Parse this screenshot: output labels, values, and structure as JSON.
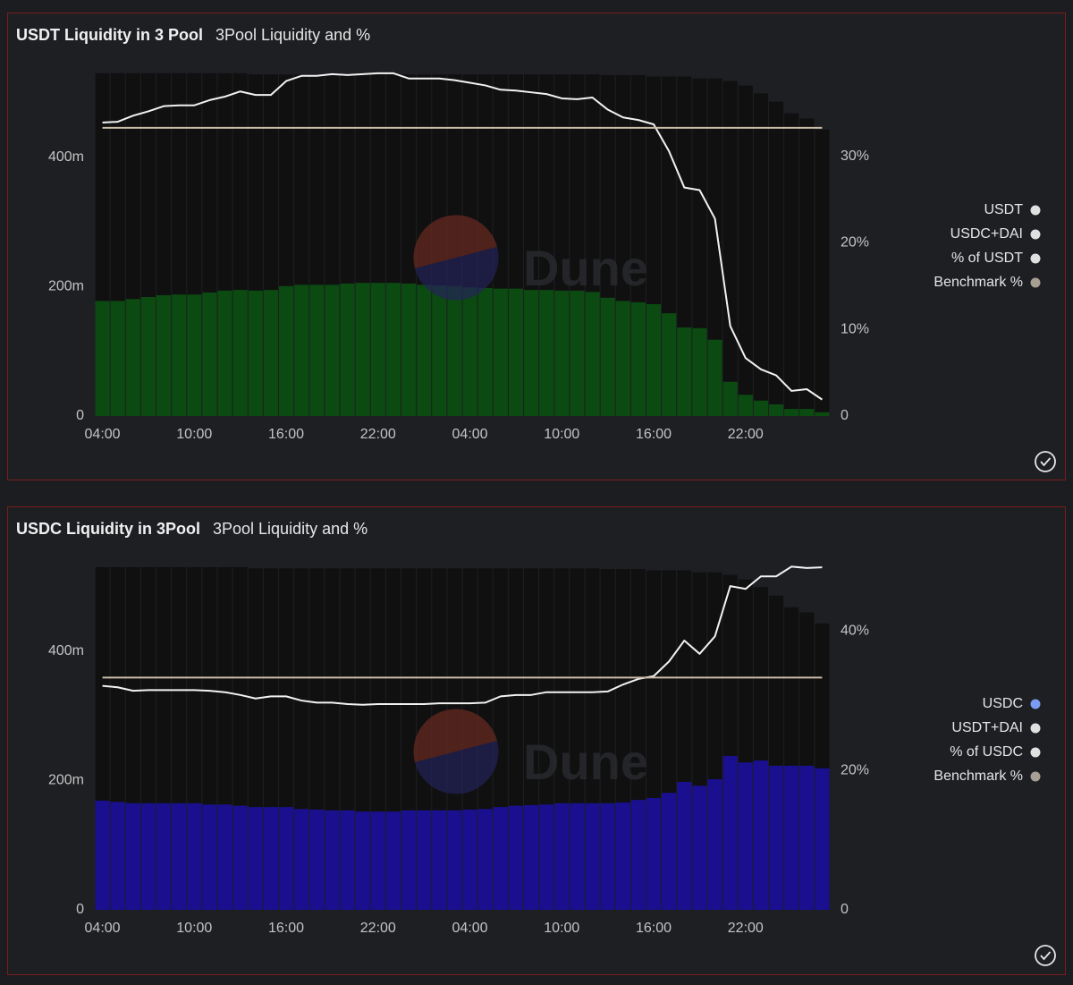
{
  "chart_data": [
    {
      "type": "combo",
      "title": "USDT Liquidity in 3 Pool",
      "subtitle": "3Pool Liquidity and %",
      "watermark": "Dune",
      "categories": [
        "04:00",
        null,
        null,
        null,
        null,
        null,
        "10:00",
        null,
        null,
        null,
        null,
        null,
        "16:00",
        null,
        null,
        null,
        null,
        null,
        "22:00",
        null,
        null,
        null,
        null,
        null,
        "04:00",
        null,
        null,
        null,
        null,
        null,
        "10:00",
        null,
        null,
        null,
        null,
        null,
        "16:00",
        null,
        null,
        null,
        null,
        null,
        "22:00",
        null,
        null,
        null,
        null,
        null
      ],
      "ylim": [
        0,
        534000000.0
      ],
      "yticks": [
        0,
        {
          "value": 200000000.0,
          "label": "200m"
        },
        {
          "value": 400000000.0,
          "label": "400m"
        }
      ],
      "y2lim": [
        0,
        39.9
      ],
      "y2ticks": [
        0,
        {
          "value": 10,
          "label": "10%"
        },
        {
          "value": 20,
          "label": "20%"
        },
        {
          "value": 30,
          "label": "30%"
        }
      ],
      "series": [
        {
          "name": "USDT",
          "type": "bar",
          "color": "#0b4a10",
          "legend_color": "#e0e0e0",
          "values": [
            178000000.0,
            178000000.0,
            181000000.0,
            184000000.0,
            187000000.0,
            188000000.0,
            188000000.0,
            191000000.0,
            194000000.0,
            195000000.0,
            194000000.0,
            195000000.0,
            201000000.0,
            203000000.0,
            203000000.0,
            203000000.0,
            205000000.0,
            206000000.0,
            206000000.0,
            206000000.0,
            205000000.0,
            203000000.0,
            202000000.0,
            201000000.0,
            199000000.0,
            198000000.0,
            197000000.0,
            197000000.0,
            195000000.0,
            195000000.0,
            194000000.0,
            194000000.0,
            192000000.0,
            183000000.0,
            178000000.0,
            176000000.0,
            173000000.0,
            159000000.0,
            137000000.0,
            136000000.0,
            118000000.0,
            53000000.0,
            33000000.0,
            24000000.0,
            18000000.0,
            11000000.0,
            11000000.0,
            6000000.0
          ]
        },
        {
          "name": "USDC+DAI",
          "type": "bar",
          "color": "#101010",
          "legend_color": "#e0e0e0",
          "values": [
            352000000.0,
            352000000.0,
            349000000.0,
            346000000.0,
            343000000.0,
            342000000.0,
            342000000.0,
            339000000.0,
            336000000.0,
            335000000.0,
            334000000.0,
            333000000.0,
            327000000.0,
            325000000.0,
            325000000.0,
            325000000.0,
            323000000.0,
            322000000.0,
            322000000.0,
            322000000.0,
            323000000.0,
            325000000.0,
            326000000.0,
            327000000.0,
            329000000.0,
            330000000.0,
            331000000.0,
            331000000.0,
            333000000.0,
            333000000.0,
            334000000.0,
            334000000.0,
            336000000.0,
            344000000.0,
            349000000.0,
            351000000.0,
            352000000.0,
            366000000.0,
            388000000.0,
            386000000.0,
            404000000.0,
            465000000.0,
            478000000.0,
            475000000.0,
            468000000.0,
            457000000.0,
            449000000.0,
            437000000.0
          ]
        },
        {
          "name": "% of USDT",
          "type": "line",
          "axis": "y2",
          "color": "#f2f2f2",
          "legend_color": "#e0e0e0",
          "values": [
            33.9,
            34.0,
            34.7,
            35.2,
            35.8,
            35.9,
            35.9,
            36.5,
            36.9,
            37.5,
            37.1,
            37.1,
            38.7,
            39.3,
            39.3,
            39.5,
            39.4,
            39.5,
            39.6,
            39.6,
            39.0,
            39.0,
            39.0,
            38.8,
            38.5,
            38.2,
            37.7,
            37.6,
            37.4,
            37.2,
            36.7,
            36.6,
            36.8,
            35.4,
            34.5,
            34.2,
            33.7,
            30.6,
            26.4,
            26.1,
            22.8,
            10.4,
            6.7,
            5.4,
            4.7,
            2.9,
            3.1,
            1.9
          ]
        },
        {
          "name": "Benchmark %",
          "type": "line",
          "axis": "y2",
          "color": "#c9bca8",
          "legend_color": "#a89f94",
          "values": [
            33.3,
            33.3,
            33.3,
            33.3,
            33.3,
            33.3,
            33.3,
            33.3,
            33.3,
            33.3,
            33.3,
            33.3,
            33.3,
            33.3,
            33.3,
            33.3,
            33.3,
            33.3,
            33.3,
            33.3,
            33.3,
            33.3,
            33.3,
            33.3,
            33.3,
            33.3,
            33.3,
            33.3,
            33.3,
            33.3,
            33.3,
            33.3,
            33.3,
            33.3,
            33.3,
            33.3,
            33.3,
            33.3,
            33.3,
            33.3,
            33.3,
            33.3,
            33.3,
            33.3,
            33.3,
            33.3,
            33.3,
            33.3
          ]
        }
      ]
    },
    {
      "type": "combo",
      "title": "USDC Liquidity in 3Pool",
      "subtitle": "3Pool Liquidity and %",
      "watermark": "Dune",
      "categories": [
        "04:00",
        null,
        null,
        null,
        null,
        null,
        "10:00",
        null,
        null,
        null,
        null,
        null,
        "16:00",
        null,
        null,
        null,
        null,
        null,
        "22:00",
        null,
        null,
        null,
        null,
        null,
        "04:00",
        null,
        null,
        null,
        null,
        null,
        "10:00",
        null,
        null,
        null,
        null,
        null,
        "16:00",
        null,
        null,
        null,
        null,
        null,
        "22:00",
        null,
        null,
        null,
        null,
        null
      ],
      "ylim": [
        0,
        534000000.0
      ],
      "yticks": [
        0,
        {
          "value": 200000000.0,
          "label": "200m"
        },
        {
          "value": 400000000.0,
          "label": "400m"
        }
      ],
      "y2lim": [
        0,
        49.5
      ],
      "y2ticks": [
        0,
        {
          "value": 20,
          "label": "20%"
        },
        {
          "value": 40,
          "label": "40%"
        }
      ],
      "series": [
        {
          "name": "USDC",
          "type": "bar",
          "color": "#1a0f8f",
          "legend_color": "#7b9cf0",
          "values": [
            169000000.0,
            167000000.0,
            165000000.0,
            165000000.0,
            165000000.0,
            165000000.0,
            165000000.0,
            163000000.0,
            163000000.0,
            161000000.0,
            159000000.0,
            159000000.0,
            159000000.0,
            156000000.0,
            155000000.0,
            154000000.0,
            154000000.0,
            152000000.0,
            152000000.0,
            152000000.0,
            154000000.0,
            154000000.0,
            154000000.0,
            154000000.0,
            155000000.0,
            156000000.0,
            159000000.0,
            161000000.0,
            162000000.0,
            163000000.0,
            165000000.0,
            165000000.0,
            165000000.0,
            165000000.0,
            166000000.0,
            170000000.0,
            173000000.0,
            181000000.0,
            198000000.0,
            192000000.0,
            202000000.0,
            238000000.0,
            228000000.0,
            231000000.0,
            223000000.0,
            223000000.0,
            223000000.0,
            219000000.0
          ]
        },
        {
          "name": "USDT+DAI",
          "type": "bar",
          "color": "#101010",
          "legend_color": "#e0e0e0",
          "values": [
            361000000.0,
            363000000.0,
            365000000.0,
            365000000.0,
            365000000.0,
            365000000.0,
            365000000.0,
            367000000.0,
            367000000.0,
            369000000.0,
            369000000.0,
            369000000.0,
            369000000.0,
            372000000.0,
            373000000.0,
            374000000.0,
            374000000.0,
            376000000.0,
            376000000.0,
            376000000.0,
            374000000.0,
            374000000.0,
            374000000.0,
            374000000.0,
            373000000.0,
            372000000.0,
            369000000.0,
            367000000.0,
            366000000.0,
            365000000.0,
            363000000.0,
            363000000.0,
            363000000.0,
            362000000.0,
            361000000.0,
            357000000.0,
            352000000.0,
            344000000.0,
            327000000.0,
            330000000.0,
            320000000.0,
            280000000.0,
            283000000.0,
            268000000.0,
            263000000.0,
            245000000.0,
            237000000.0,
            224000000.0
          ]
        },
        {
          "name": "% of USDC",
          "type": "line",
          "axis": "y2",
          "color": "#f2f2f2",
          "legend_color": "#e0e0e0",
          "values": [
            32.1,
            31.9,
            31.4,
            31.5,
            31.5,
            31.5,
            31.5,
            31.4,
            31.2,
            30.8,
            30.3,
            30.6,
            30.6,
            30.0,
            29.7,
            29.7,
            29.5,
            29.4,
            29.5,
            29.5,
            29.5,
            29.5,
            29.6,
            29.6,
            29.6,
            29.7,
            30.6,
            30.8,
            30.8,
            31.2,
            31.2,
            31.2,
            31.2,
            31.3,
            32.3,
            33.1,
            33.5,
            35.6,
            38.6,
            36.7,
            39.2,
            46.4,
            46.0,
            47.8,
            47.8,
            49.2,
            49.0,
            49.1
          ]
        },
        {
          "name": "Benchmark %",
          "type": "line",
          "axis": "y2",
          "color": "#c9bca8",
          "legend_color": "#a89f94",
          "values": [
            33.3,
            33.3,
            33.3,
            33.3,
            33.3,
            33.3,
            33.3,
            33.3,
            33.3,
            33.3,
            33.3,
            33.3,
            33.3,
            33.3,
            33.3,
            33.3,
            33.3,
            33.3,
            33.3,
            33.3,
            33.3,
            33.3,
            33.3,
            33.3,
            33.3,
            33.3,
            33.3,
            33.3,
            33.3,
            33.3,
            33.3,
            33.3,
            33.3,
            33.3,
            33.3,
            33.3,
            33.3,
            33.3,
            33.3,
            33.3,
            33.3,
            33.3,
            33.3,
            33.3,
            33.3,
            33.3,
            33.3,
            33.3
          ]
        }
      ]
    }
  ]
}
